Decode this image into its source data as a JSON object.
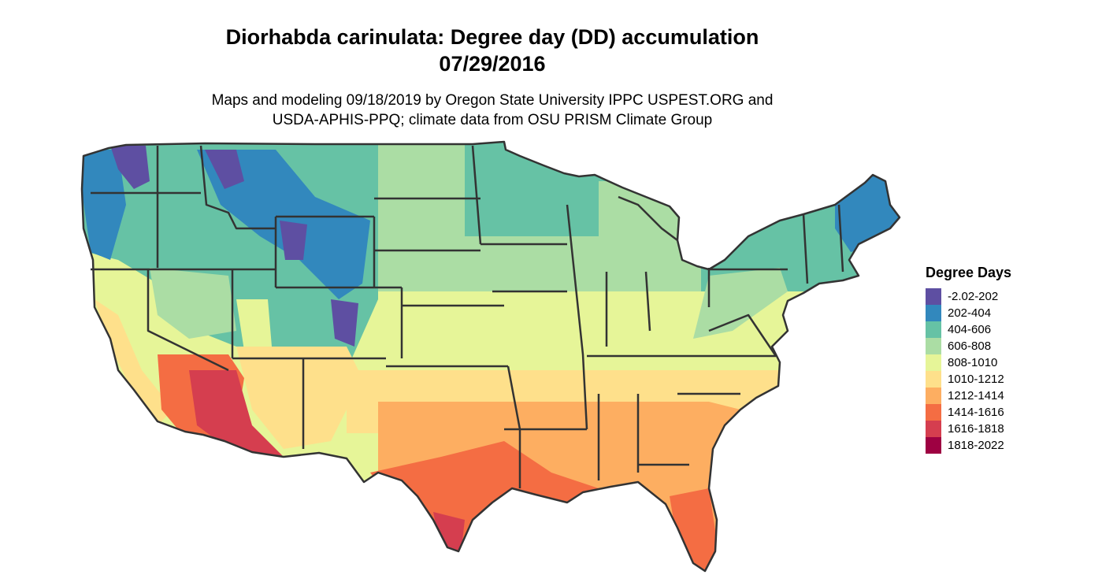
{
  "title_line1": "Diorhabda carinulata: Degree day (DD) accumulation",
  "title_line2": "07/29/2016",
  "subtitle_line1": "Maps and modeling 09/18/2019 by Oregon State University IPPC USPEST.ORG and",
  "subtitle_line2": "USDA-APHIS-PPQ; climate data from OSU PRISM Climate Group",
  "legend": {
    "title": "Degree Days",
    "items": [
      {
        "label": "-2.02-202",
        "color": "#5E4FA2"
      },
      {
        "label": "202-404",
        "color": "#3288BD"
      },
      {
        "label": "404-606",
        "color": "#66C2A5"
      },
      {
        "label": "606-808",
        "color": "#ABDDA4"
      },
      {
        "label": "808-1010",
        "color": "#E6F598"
      },
      {
        "label": "1010-1212",
        "color": "#FEE08B"
      },
      {
        "label": "1212-1414",
        "color": "#FDAE61"
      },
      {
        "label": "1414-1616",
        "color": "#F46D43"
      },
      {
        "label": "1616-1818",
        "color": "#D53E4F"
      },
      {
        "label": "1818-2022",
        "color": "#9E0142"
      }
    ]
  },
  "map": {
    "region": "Contiguous United States",
    "state_border_color": "#333333"
  }
}
